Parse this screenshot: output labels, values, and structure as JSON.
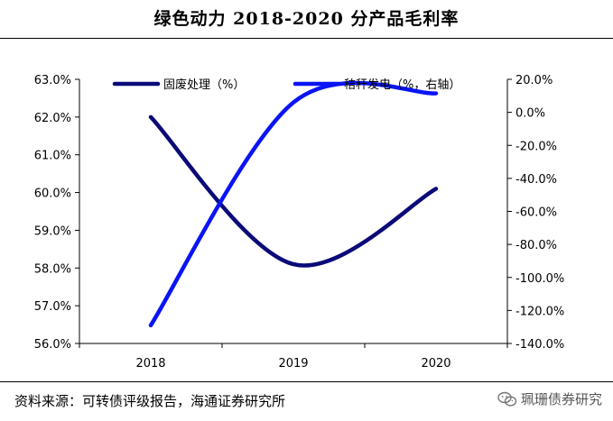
{
  "title": "绿色动力 2018-2020 分产品毛利率",
  "source": "资料来源：可转债评级报告，海通证券研究所",
  "watermark": "珮珊债券研究",
  "colors": {
    "series1": "#0a0a78",
    "series2": "#0a14f5"
  },
  "chart_data": {
    "type": "line",
    "x": [
      "2018",
      "2019",
      "2020"
    ],
    "series": [
      {
        "name": "固废处理（%）",
        "axis": "left",
        "values": [
          62.0,
          58.1,
          60.1
        ]
      },
      {
        "name": "秸秆发电（%，右轴）",
        "axis": "right",
        "values": [
          -129.0,
          6.0,
          11.5
        ]
      }
    ],
    "y_left": {
      "min": 56.0,
      "max": 63.0,
      "step": 1.0,
      "ticks": [
        "56.0%",
        "57.0%",
        "58.0%",
        "59.0%",
        "60.0%",
        "61.0%",
        "62.0%",
        "63.0%"
      ]
    },
    "y_right": {
      "min": -140.0,
      "max": 20.0,
      "step": 20.0,
      "ticks": [
        "-140.0%",
        "-120.0%",
        "-100.0%",
        "-80.0%",
        "-60.0%",
        "-40.0%",
        "-20.0%",
        "0.0%",
        "20.0%"
      ]
    },
    "smooth": true,
    "grid": false,
    "legend": "top"
  }
}
